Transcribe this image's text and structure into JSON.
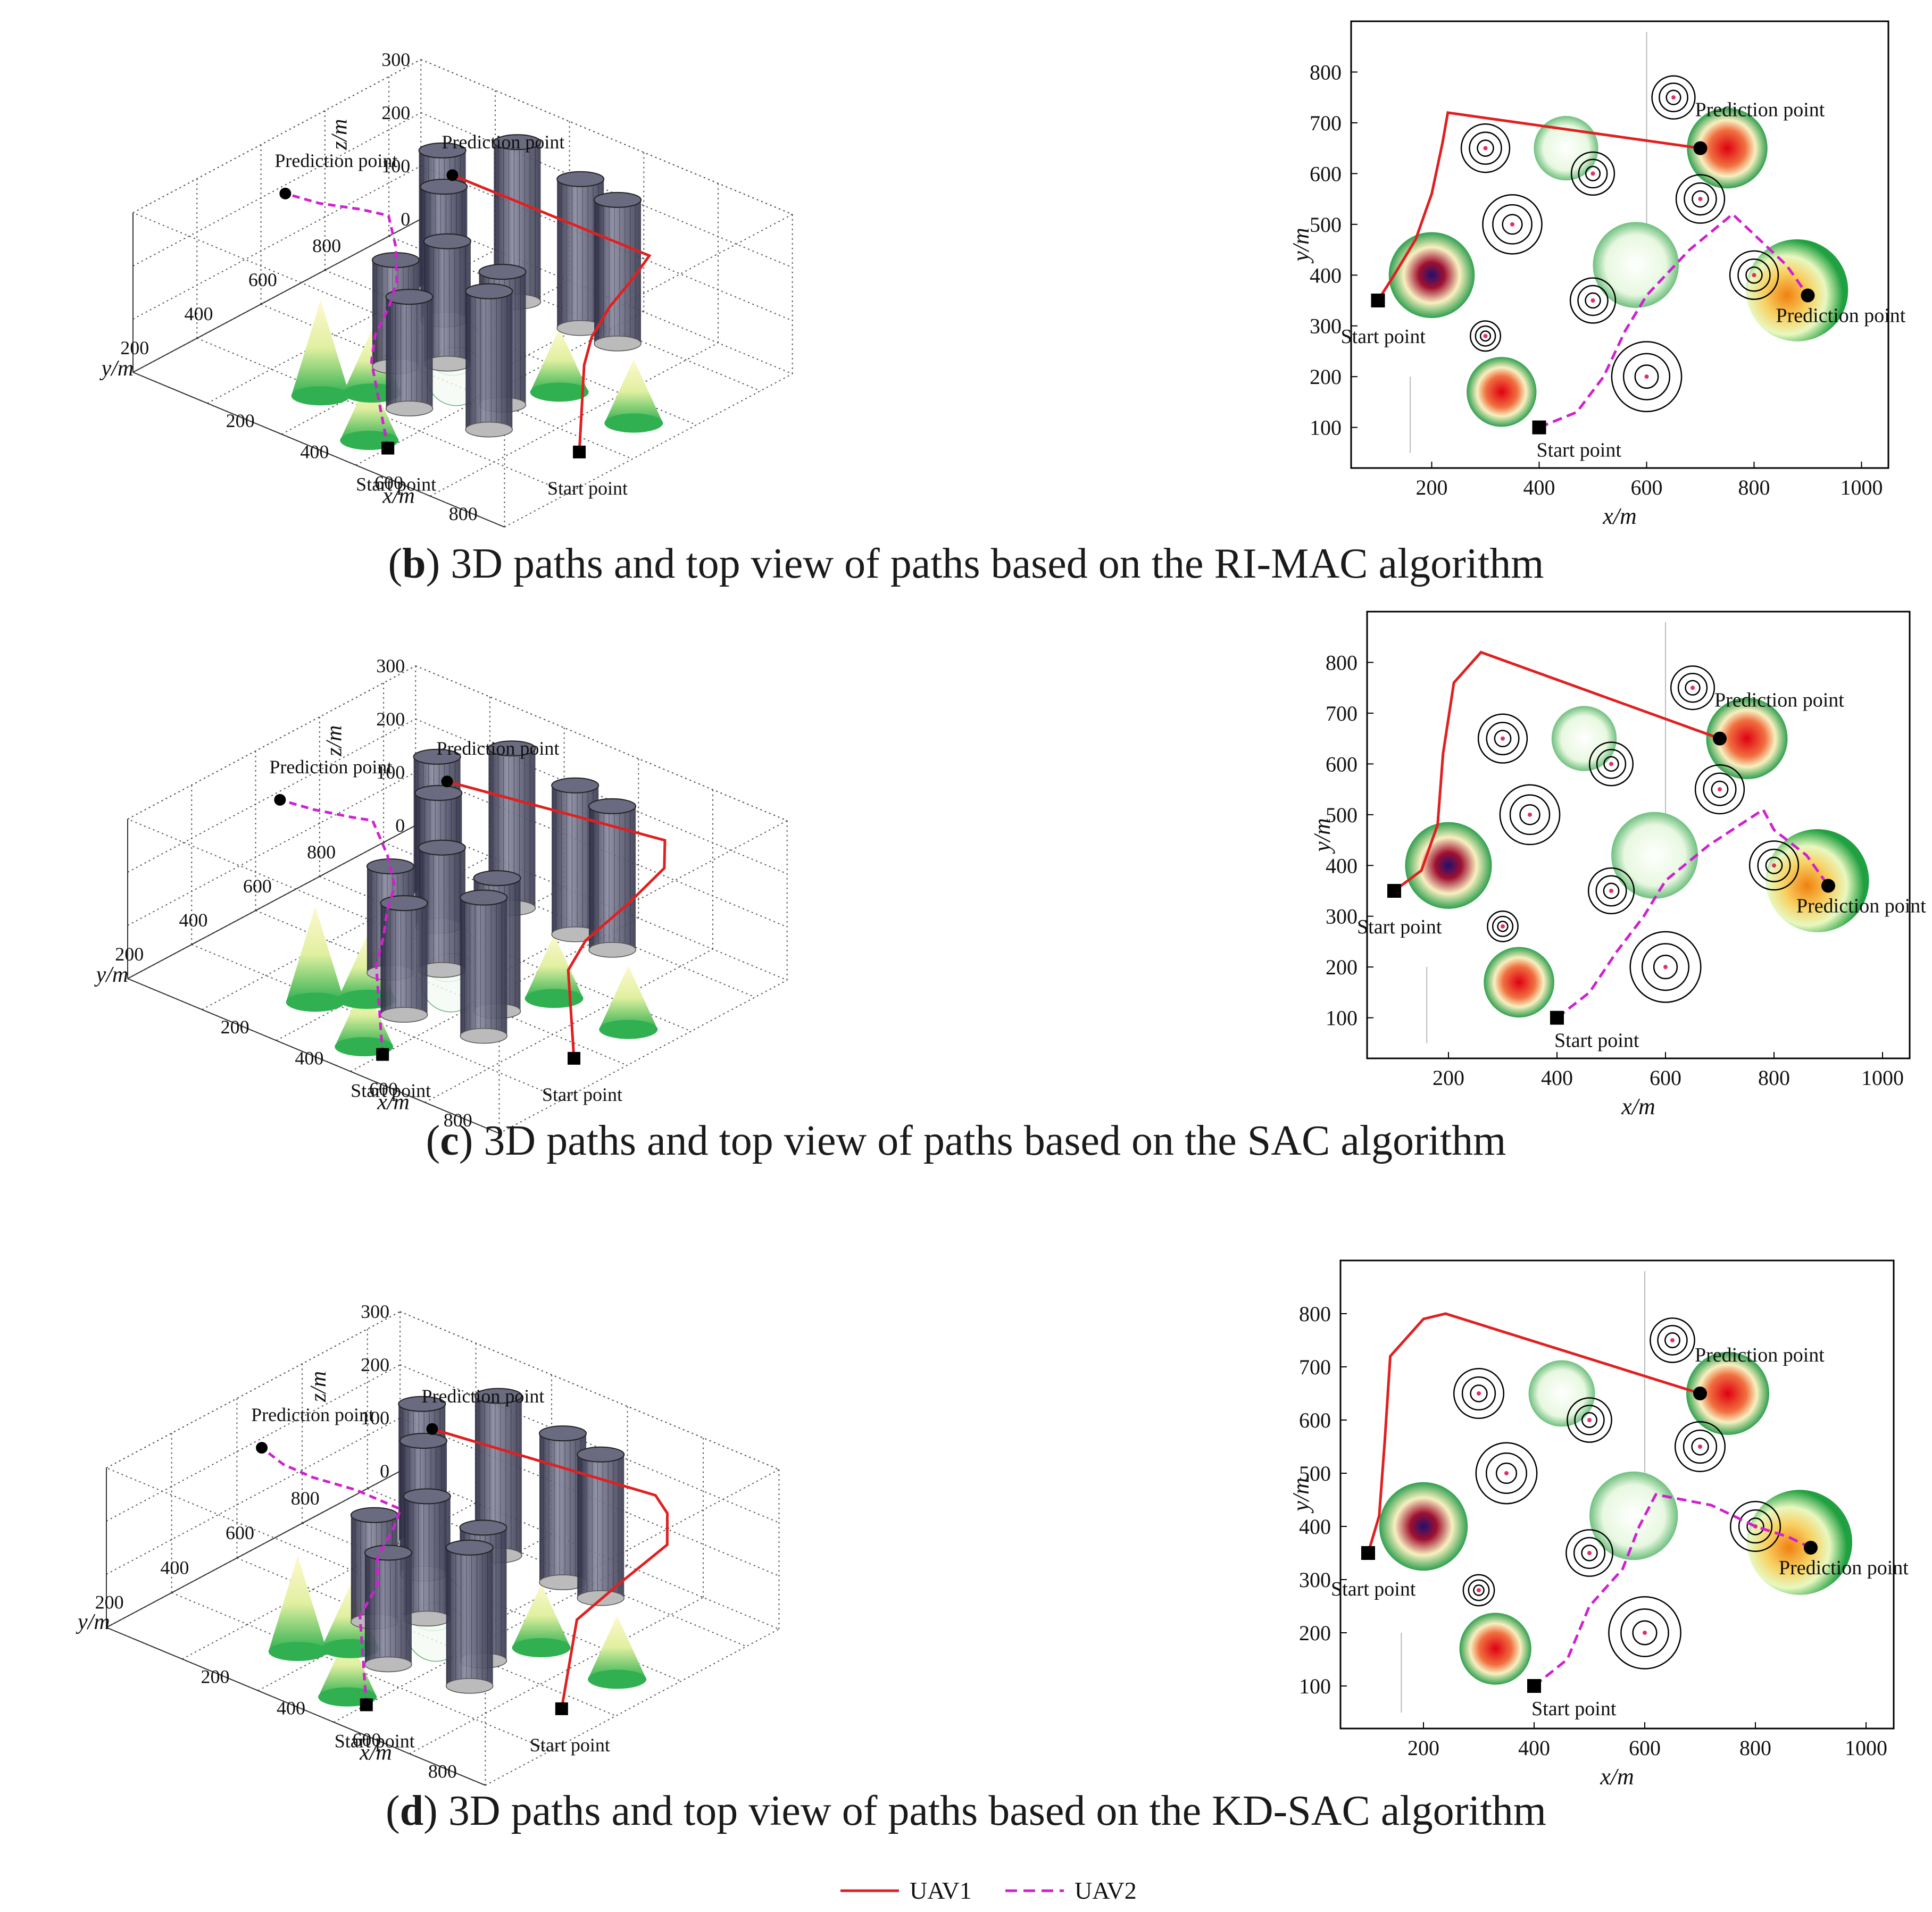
{
  "labels": {
    "x": "x/m",
    "y": "y/m",
    "z": "z/m",
    "start": "Start point",
    "prediction": "Prediction point"
  },
  "panels": [
    {
      "letter": "b",
      "caption": ") 3D paths and top view of paths based on the RI-MAC algorithm"
    },
    {
      "letter": "c",
      "caption": ") 3D paths and top view of paths based on the SAC algorithm"
    },
    {
      "letter": "d",
      "caption": ") 3D paths and top view of paths based on the KD-SAC algorithm"
    }
  ],
  "legend": [
    {
      "name": "UAV1",
      "color": "#e02020",
      "dash": "solid"
    },
    {
      "name": "UAV2",
      "color": "#d020d0",
      "dash": "dashed"
    }
  ],
  "chart_data": [
    {
      "type": "line",
      "view": "top",
      "xlabel": "x/m",
      "ylabel": "y/m",
      "xticks": [
        200,
        400,
        600,
        800,
        1000
      ],
      "yticks": [
        100,
        200,
        300,
        400,
        500,
        600,
        700,
        800
      ],
      "xlim": [
        50,
        1050
      ],
      "ylim": [
        20,
        900
      ],
      "series": [
        {
          "name": "UAV1",
          "x": [
            100,
            130,
            170,
            200,
            220,
            230,
            700
          ],
          "y": [
            350,
            400,
            470,
            560,
            660,
            720,
            650
          ]
        },
        {
          "name": "UAV2",
          "x": [
            400,
            470,
            520,
            560,
            600,
            680,
            760,
            800,
            860,
            900
          ],
          "y": [
            100,
            130,
            200,
            290,
            360,
            450,
            520,
            480,
            420,
            360
          ]
        }
      ]
    },
    {
      "type": "line",
      "view": "top",
      "xlabel": "x/m",
      "ylabel": "y/m",
      "xticks": [
        200,
        400,
        600,
        800,
        1000
      ],
      "yticks": [
        100,
        200,
        300,
        400,
        500,
        600,
        700,
        800
      ],
      "xlim": [
        50,
        1050
      ],
      "ylim": [
        20,
        900
      ],
      "series": [
        {
          "name": "UAV1",
          "x": [
            100,
            150,
            180,
            190,
            210,
            260,
            700
          ],
          "y": [
            350,
            390,
            480,
            620,
            760,
            820,
            650
          ]
        },
        {
          "name": "UAV2",
          "x": [
            400,
            460,
            510,
            560,
            600,
            680,
            780,
            800,
            860,
            900
          ],
          "y": [
            100,
            150,
            230,
            300,
            370,
            440,
            510,
            470,
            420,
            360
          ]
        }
      ]
    },
    {
      "type": "line",
      "view": "top",
      "xlabel": "x/m",
      "ylabel": "y/m",
      "xticks": [
        200,
        400,
        600,
        800,
        1000
      ],
      "yticks": [
        100,
        200,
        300,
        400,
        500,
        600,
        700,
        800
      ],
      "xlim": [
        50,
        1050
      ],
      "ylim": [
        20,
        900
      ],
      "series": [
        {
          "name": "UAV1",
          "x": [
            100,
            120,
            130,
            140,
            200,
            240,
            700
          ],
          "y": [
            350,
            420,
            560,
            720,
            790,
            800,
            650
          ]
        },
        {
          "name": "UAV2",
          "x": [
            400,
            460,
            500,
            560,
            590,
            620,
            720,
            800,
            860,
            900
          ],
          "y": [
            100,
            150,
            250,
            320,
            400,
            460,
            440,
            400,
            380,
            360
          ]
        }
      ]
    }
  ]
}
